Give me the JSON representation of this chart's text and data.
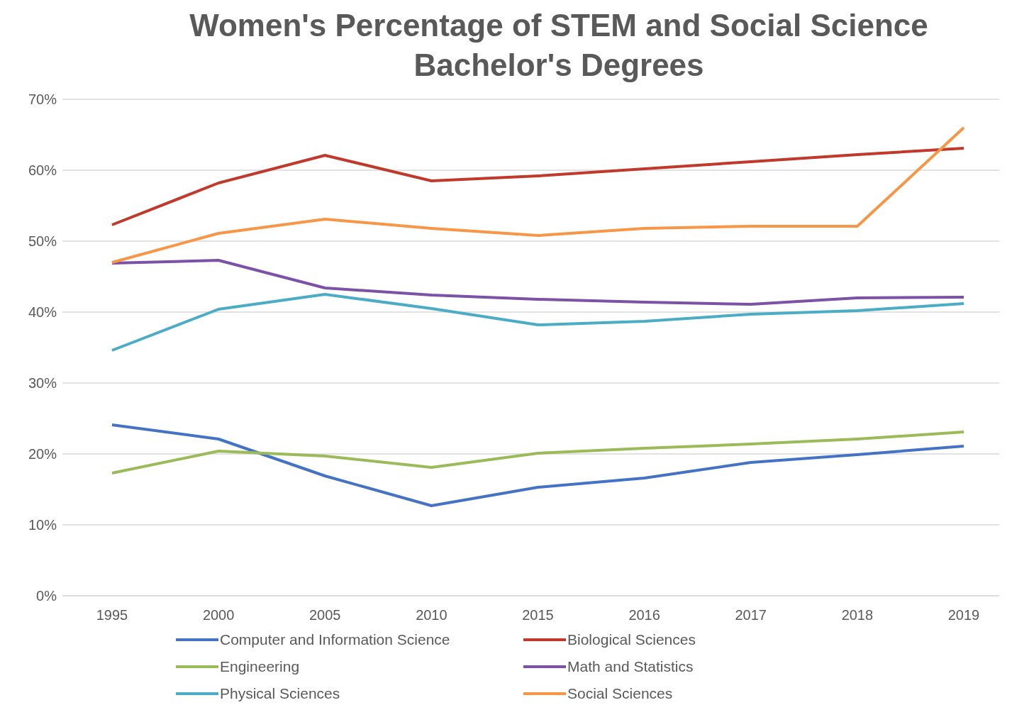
{
  "chart_data": {
    "type": "line",
    "title": "Women's Percentage of STEM and Social Science Bachelor's Degrees",
    "categories": [
      "1995",
      "2000",
      "2005",
      "2010",
      "2015",
      "2016",
      "2017",
      "2018",
      "2019"
    ],
    "series": [
      {
        "name": "Computer and Information Science",
        "color": "#4472c4",
        "values": [
          24.1,
          22.1,
          16.9,
          12.7,
          15.3,
          16.6,
          18.8,
          19.9,
          21.1
        ]
      },
      {
        "name": "Biological Sciences",
        "color": "#c0392b",
        "values": [
          52.3,
          58.2,
          62.1,
          58.5,
          59.2,
          60.2,
          61.2,
          62.2,
          63.1
        ]
      },
      {
        "name": "Engineering",
        "color": "#9bbb59",
        "values": [
          17.3,
          20.4,
          19.7,
          18.1,
          20.1,
          20.8,
          21.4,
          22.1,
          23.1
        ]
      },
      {
        "name": "Math and Statistics",
        "color": "#7b52a8",
        "values": [
          46.9,
          47.3,
          43.4,
          42.4,
          41.8,
          41.4,
          41.1,
          42.0,
          42.1
        ]
      },
      {
        "name": "Physical Sciences",
        "color": "#4bacc6",
        "values": [
          34.6,
          40.4,
          42.5,
          40.5,
          38.2,
          38.7,
          39.7,
          40.2,
          41.2
        ]
      },
      {
        "name": "Social Sciences",
        "color": "#f79646",
        "values": [
          47.0,
          51.1,
          53.1,
          51.8,
          50.8,
          51.8,
          52.1,
          52.1,
          66.0
        ]
      }
    ],
    "ylim": [
      0,
      70
    ],
    "yticks": [
      {
        "value": 0,
        "label": "0%"
      },
      {
        "value": 10,
        "label": "10%"
      },
      {
        "value": 20,
        "label": "20%"
      },
      {
        "value": 30,
        "label": "30%"
      },
      {
        "value": 40,
        "label": "40%"
      },
      {
        "value": 50,
        "label": "50%"
      },
      {
        "value": 60,
        "label": "60%"
      },
      {
        "value": 70,
        "label": "70%"
      }
    ],
    "grid": "y",
    "legend": "bottom",
    "marker": "none",
    "line_style": "solid"
  }
}
